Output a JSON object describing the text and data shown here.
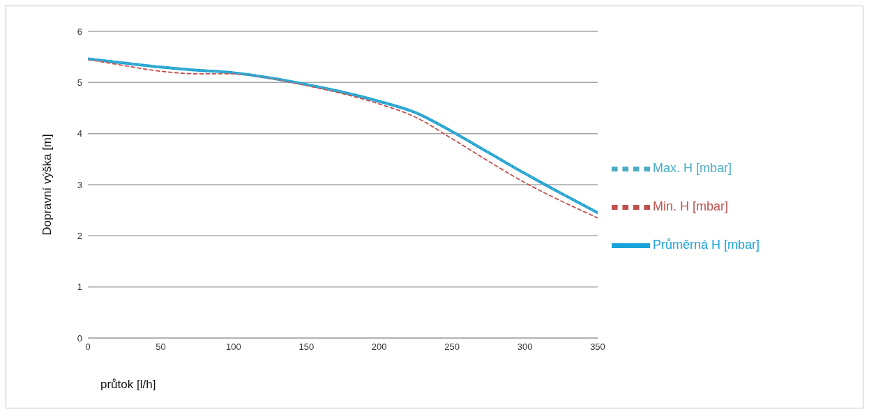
{
  "chart_data": {
    "type": "line",
    "xlabel": "průtok [l/h]",
    "ylabel": "Dopravní výška [m]",
    "x": [
      0,
      25,
      50,
      75,
      100,
      125,
      150,
      175,
      200,
      225,
      250,
      275,
      300,
      325,
      350
    ],
    "series": [
      {
        "name": "Průměrná H [mbar]",
        "color": "#1aa3d9",
        "line_style": "solid",
        "values": [
          5.46,
          5.38,
          5.3,
          5.24,
          5.19,
          5.09,
          4.96,
          4.81,
          4.63,
          4.41,
          4.04,
          3.63,
          3.22,
          2.83,
          2.45
        ]
      },
      {
        "name": "Min. H [mbar]",
        "color": "#c0504d",
        "line_style": "dashed",
        "values": [
          5.45,
          5.33,
          5.22,
          5.17,
          5.17,
          5.08,
          4.94,
          4.78,
          4.58,
          4.32,
          3.9,
          3.46,
          3.04,
          2.68,
          2.35
        ]
      },
      {
        "name": "Max. H [mbar]",
        "color": "#4bacc6",
        "line_style": "dashed",
        "values": [
          5.46,
          5.38,
          5.3,
          5.24,
          5.19,
          5.09,
          4.96,
          4.81,
          4.63,
          4.41,
          4.04,
          3.63,
          3.22,
          2.83,
          2.45
        ]
      }
    ],
    "xlim": [
      0,
      350
    ],
    "xticks": [
      0,
      50,
      100,
      150,
      200,
      250,
      300,
      350
    ],
    "ylim": [
      0,
      6
    ],
    "yticks": [
      0,
      1,
      2,
      3,
      4,
      5,
      6
    ],
    "grid": "y",
    "legend": "right",
    "marker": "none"
  }
}
